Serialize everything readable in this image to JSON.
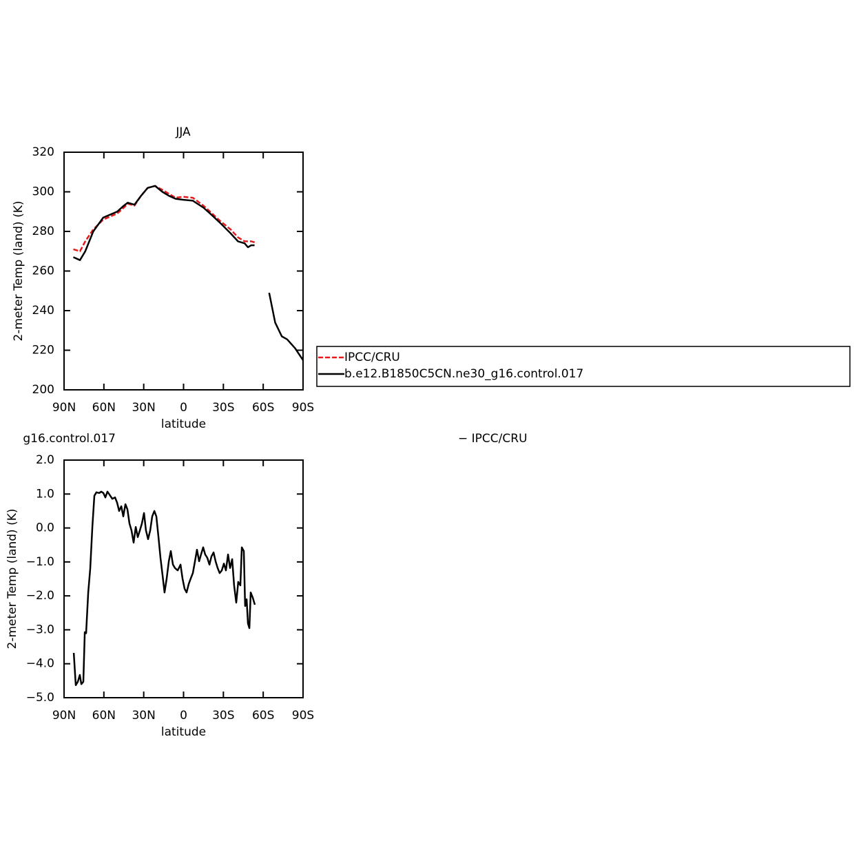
{
  "chart_data": [
    {
      "type": "line",
      "title": "JJA",
      "xlabel": "latitude",
      "ylabel": "2-meter Temp (land) (K)",
      "x": [
        83,
        78,
        74,
        68,
        60.5,
        50,
        45,
        42,
        37,
        32,
        27,
        21.5,
        16,
        11,
        6,
        0.5,
        -7,
        -15,
        -20,
        -28,
        -35.5,
        -41,
        -46,
        -48.5,
        -51,
        -53.5,
        -55,
        -60,
        -64.5,
        -69,
        -74,
        -78,
        -84,
        -90
      ],
      "series": [
        {
          "name": "IPCC/CRU",
          "color": "#e41a1c",
          "dash": true,
          "values": [
            271,
            270,
            275,
            281,
            286,
            289,
            292,
            294,
            293,
            298,
            302,
            303,
            301,
            299,
            297,
            297.5,
            297,
            293,
            290,
            285,
            281,
            277,
            275,
            275,
            275,
            274.5,
            274,
            null,
            null,
            null,
            null,
            null,
            null,
            null
          ]
        },
        {
          "name": "b.e12.B1850C5CN.ne30_g16.control.017",
          "color": "#000000",
          "dash": false,
          "values": [
            267,
            265.5,
            270,
            280,
            287,
            290,
            293,
            294.5,
            293.5,
            298,
            302,
            303,
            300,
            298,
            296.5,
            296,
            295.5,
            292,
            289,
            284,
            279,
            275,
            274,
            272,
            273,
            273,
            null,
            null,
            249,
            234,
            227,
            225.5,
            221,
            215
          ]
        }
      ],
      "xlim": [
        90,
        -90
      ],
      "xticks": [
        {
          "value": 90,
          "label": "90N"
        },
        {
          "value": 60,
          "label": "60N"
        },
        {
          "value": 30,
          "label": "30N"
        },
        0,
        {
          "value": -30,
          "label": "30S"
        },
        {
          "value": -60,
          "label": "60S"
        },
        {
          "value": -90,
          "label": "90S"
        }
      ],
      "ylim": [
        200,
        320
      ],
      "yticks": [
        200,
        220,
        240,
        260,
        280,
        300,
        320
      ],
      "legend": true
    },
    {
      "type": "line",
      "title_left": "g16.control.017",
      "title_right": "− IPCC/CRU",
      "xlabel": "latitude",
      "ylabel": "2-meter Temp (land) (K)",
      "x": [
        82.7,
        81.2,
        79.6,
        78.1,
        77,
        75.5,
        74.4,
        73.4,
        71.8,
        70.3,
        68.7,
        67.2,
        65.6,
        63.5,
        62,
        60.4,
        58.9,
        57.3,
        55.2,
        53.7,
        51.6,
        50,
        48.5,
        46.9,
        45.4,
        43.8,
        42.3,
        40.7,
        39.2,
        37.6,
        36,
        34.5,
        32.9,
        31.4,
        29.8,
        28.3,
        26.7,
        25.1,
        23.6,
        22,
        20.5,
        18.9,
        17.4,
        15.8,
        14.3,
        12.7,
        11.1,
        9.6,
        8,
        6.5,
        4.4,
        2.3,
        0.8,
        -0.8,
        -2.3,
        -3.9,
        -5.4,
        -7,
        -8.6,
        -10.1,
        -11.7,
        -13.2,
        -14.8,
        -16.3,
        -17.9,
        -19.5,
        -21,
        -22.6,
        -24.1,
        -25.7,
        -27.2,
        -28.8,
        -30.4,
        -31.9,
        -33.5,
        -35,
        -36.6,
        -38.1,
        -39.7,
        -41.2,
        -42.8,
        -43.9,
        -45.4,
        -46.4,
        -47.5,
        -48.5,
        -49.6,
        -50.6,
        -52.2,
        -53.7
      ],
      "series": [
        {
          "name": "b.e12.B1850C5CN.ne30_g16.control.017",
          "color": "#000000",
          "dash": false,
          "values": [
            -3.68,
            -4.63,
            -4.53,
            -4.33,
            -4.6,
            -4.53,
            -3.07,
            -3.1,
            -1.9,
            -1.2,
            0.03,
            0.95,
            1.05,
            1.03,
            1.07,
            1.03,
            0.9,
            1.07,
            0.95,
            0.86,
            0.9,
            0.74,
            0.5,
            0.64,
            0.34,
            0.7,
            0.55,
            0.13,
            -0.07,
            -0.43,
            0.03,
            -0.27,
            -0.07,
            0.13,
            0.44,
            -0.07,
            -0.33,
            -0.07,
            0.34,
            0.5,
            0.34,
            -0.27,
            -0.88,
            -1.39,
            -1.9,
            -1.49,
            -0.98,
            -0.68,
            -1.08,
            -1.18,
            -1.25,
            -1.08,
            -1.49,
            -1.79,
            -1.9,
            -1.65,
            -1.49,
            -1.33,
            -0.98,
            -0.64,
            -0.98,
            -0.78,
            -0.57,
            -0.78,
            -0.88,
            -1.08,
            -0.84,
            -0.72,
            -0.98,
            -1.18,
            -1.33,
            -1.25,
            -1.05,
            -1.25,
            -0.78,
            -1.18,
            -0.92,
            -1.69,
            -2.2,
            -1.59,
            -1.69,
            -0.57,
            -0.68,
            -2.3,
            -2.1,
            -2.81,
            -2.95,
            -1.9,
            -2.06,
            -2.26
          ]
        }
      ],
      "xlim": [
        90,
        -90
      ],
      "xticks": [
        {
          "value": 90,
          "label": "90N"
        },
        {
          "value": 60,
          "label": "60N"
        },
        {
          "value": 30,
          "label": "30N"
        },
        0,
        {
          "value": -30,
          "label": "30S"
        },
        {
          "value": -60,
          "label": "60S"
        },
        {
          "value": -90,
          "label": "90S"
        }
      ],
      "ylim": [
        -5,
        2
      ],
      "yticks": [
        {
          "value": -5,
          "label": "−5.0"
        },
        {
          "value": -4,
          "label": "−4.0"
        },
        {
          "value": -3,
          "label": "−3.0"
        },
        {
          "value": -2,
          "label": "−2.0"
        },
        {
          "value": -1,
          "label": "−1.0"
        },
        {
          "value": 0,
          "label": "0.0"
        },
        {
          "value": 1,
          "label": "1.0"
        },
        {
          "value": 2,
          "label": "2.0"
        }
      ],
      "legend": false
    }
  ]
}
